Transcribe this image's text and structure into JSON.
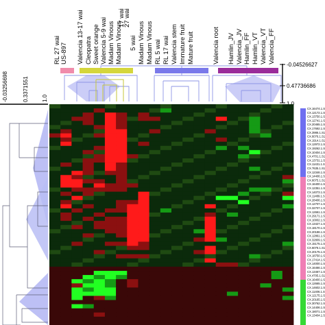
{
  "column_labels": [
    "RL 27 wai",
    "US-897",
    "Valencia 13-17 wai",
    "Cleopatra",
    "Sweet orange",
    "Valencia 5-9 wai",
    "Madam Vinous",
    "Madam Vinous",
    "Madam Vinous",
    "Madam Vinous",
    "RL 5 wai",
    "RL 17 wai",
    "Valencia stem",
    "Immature fruit",
    "Mature fruit",
    "Valencia root",
    "Hamlin_JV",
    "Valencia_JV",
    "Hamlin_FF",
    "Hamlin_VT",
    "Valencia_VT",
    "Valencia_FF"
  ],
  "col_suffix_labels": [
    "17 wai",
    "27 wai",
    "5 wai"
  ],
  "top_scale_labels": [
    "-0.04526627",
    "0.47736686",
    "1.0"
  ],
  "left_scale_labels": [
    "-0.03256698",
    "0.3371551",
    "1.0"
  ],
  "colors": {
    "red": "#ff1a1a",
    "green": "#1aff1a",
    "black": "#000000",
    "tree_fill": "#b9bdf4",
    "tree_stroke": "#8e95e6",
    "yellow_bracket": "#c6c63a",
    "bar_pink": "#f08cab",
    "bar_yellow": "#d5d63c",
    "bar_blue": "#7a79ea",
    "bar_purple": "#9a2c9a",
    "side_blue": "#6f6ff0",
    "side_pink": "#f07eb5",
    "side_green": "#35d935"
  },
  "gene_labels": [
    "CX.16474.1.S1_s_at",
    "CX.12172.1.S1_s_at",
    "CX.13750.1.S1_s_at",
    "CX.12741.1.S1_at",
    "CX.20465.1.S1_at",
    "CX.17692.1.S1_at",
    "CX.3986.1.S1_at",
    "CX.6076.1.S1_at",
    "CX.1914.1.S1_at",
    "CX.12972.1.S1_s_at",
    "CX.19262.1.S1_at",
    "CX.10404.1.S1_s_at",
    "CX.4701.1.S1_at",
    "CX.13731.1.S1_at",
    "CX.11431.1.S1_at",
    "CX.7635.1.S1_at",
    "CX.12346.1.S1_at",
    "CX.14406.1.S1_at",
    "CX.6075.1.S1_at",
    "CX.16400.1.S1_at",
    "CX.12351.1.S1_at",
    "CX.14073.1.S1_at",
    "CX.11489.1.S1_at",
    "CX.28406.1.S1_at",
    "CX.12707.1.S1_at",
    "CX.32707.1.S1_at",
    "CX.12661.1.S1_at",
    "CX.29171.1.S1_at",
    "CX.10002.1.S1_s_at",
    "CX.13427.1.S1_at",
    "CX.18170.1.S1_s_at",
    "CX.20186.1.S1_at",
    "CX.12861.1.S1_at",
    "CX.32809.1.S1_at",
    "CX.15175.1.S1_at",
    "CX.6078.1.S1_at",
    "CX.20175.1.S1_at",
    "CX.18750.1.S1_at",
    "CX.17414.1.S1_at",
    "CX.14000.1.S1_at",
    "CX.16466.1.S1_at",
    "CX.13467.1.S1_at",
    "CX.4705.1.S1_s_at",
    "CX.16400.1.S1_at",
    "CX.12665.1.S1_at",
    "CX.14602.1.S1_at",
    "CX.11406.1.S1_at",
    "CX.12175.1.S1_at",
    "CX.20165.1.S1_at",
    "CX.30762.1.S1_at",
    "CX.14406.1.S1_at",
    "CX.18071.1.S1_at",
    "CX.13404.1.S1_at"
  ],
  "heatmap": {
    "rows": [
      "0000000000000000000000",
      "0000r00000g00000000000",
      "000r0Rr0r0000000000000",
      "00rr0Rr0rr00000R00g000",
      "000r0Rr00000000000g000",
      "0000rRr00000000000g000",
      "0r000RR00r0000r000g000",
      "rR00rRR000000000000g00",
      "0r000RR00000000r000000",
      "0R000RR0r0000000000000",
      "0000rRR00000000g0g0000",
      "000r0RR00000000000G000",
      "0000rRRr000000000g0000",
      "000rrRR000000000000000",
      "0r0r0Rr000000000000000",
      "000r0Rr00000000000g000",
      "00Rr0rr000000000000000",
      "0Rr000r00000000000000r0",
      "0RRrr0r00000000000000g0",
      "0RR0Rrrr00000000000000",
      "00rrrrr00000000000gg00",
      "0r0r0000R00000000g000r",
      "00R00000R000000GG0000G",
      "0r0000rrR00000000G0000",
      "0R0r00rRR00000R000000g",
      "00r00rrRR0g00000000000",
      "0r00r00RR00000r0g00000",
      "0r0r0rrRR00000R0000000",
      "0000rrrRR00000R0000000",
      "00r0rrrRR00000R0000000",
      "00000rrRR0000gR0000000",
      "000r00rRR00000R0000000",
      "0000000RR0000rRg000000",
      "00r00rrRr000000000000g",
      "0000000rr00000R0000000",
      "0000r00000000rR0000000",
      "000000rrr000000000g000",
      "00000000000000R0000000",
      "000000000000000rr00000",
      "0000000000000000000000",
      "0000GGG0000000000000g0",
      "000GgGg0000000000000g0",
      "00GgGg0r00000000000000",
      "00rGGg0r00000000000g00",
      "00GgGG000000000000000g",
      "00GGGG0000000000g00000",
      "00G0rg000000000000000g",
      "0000000000000000000000",
      "00Gg000000000000000000",
      "0000000000000000000000",
      "0000r00000000000000000",
      "0000000000000000000000",
      "0000000000000000000000"
    ]
  }
}
